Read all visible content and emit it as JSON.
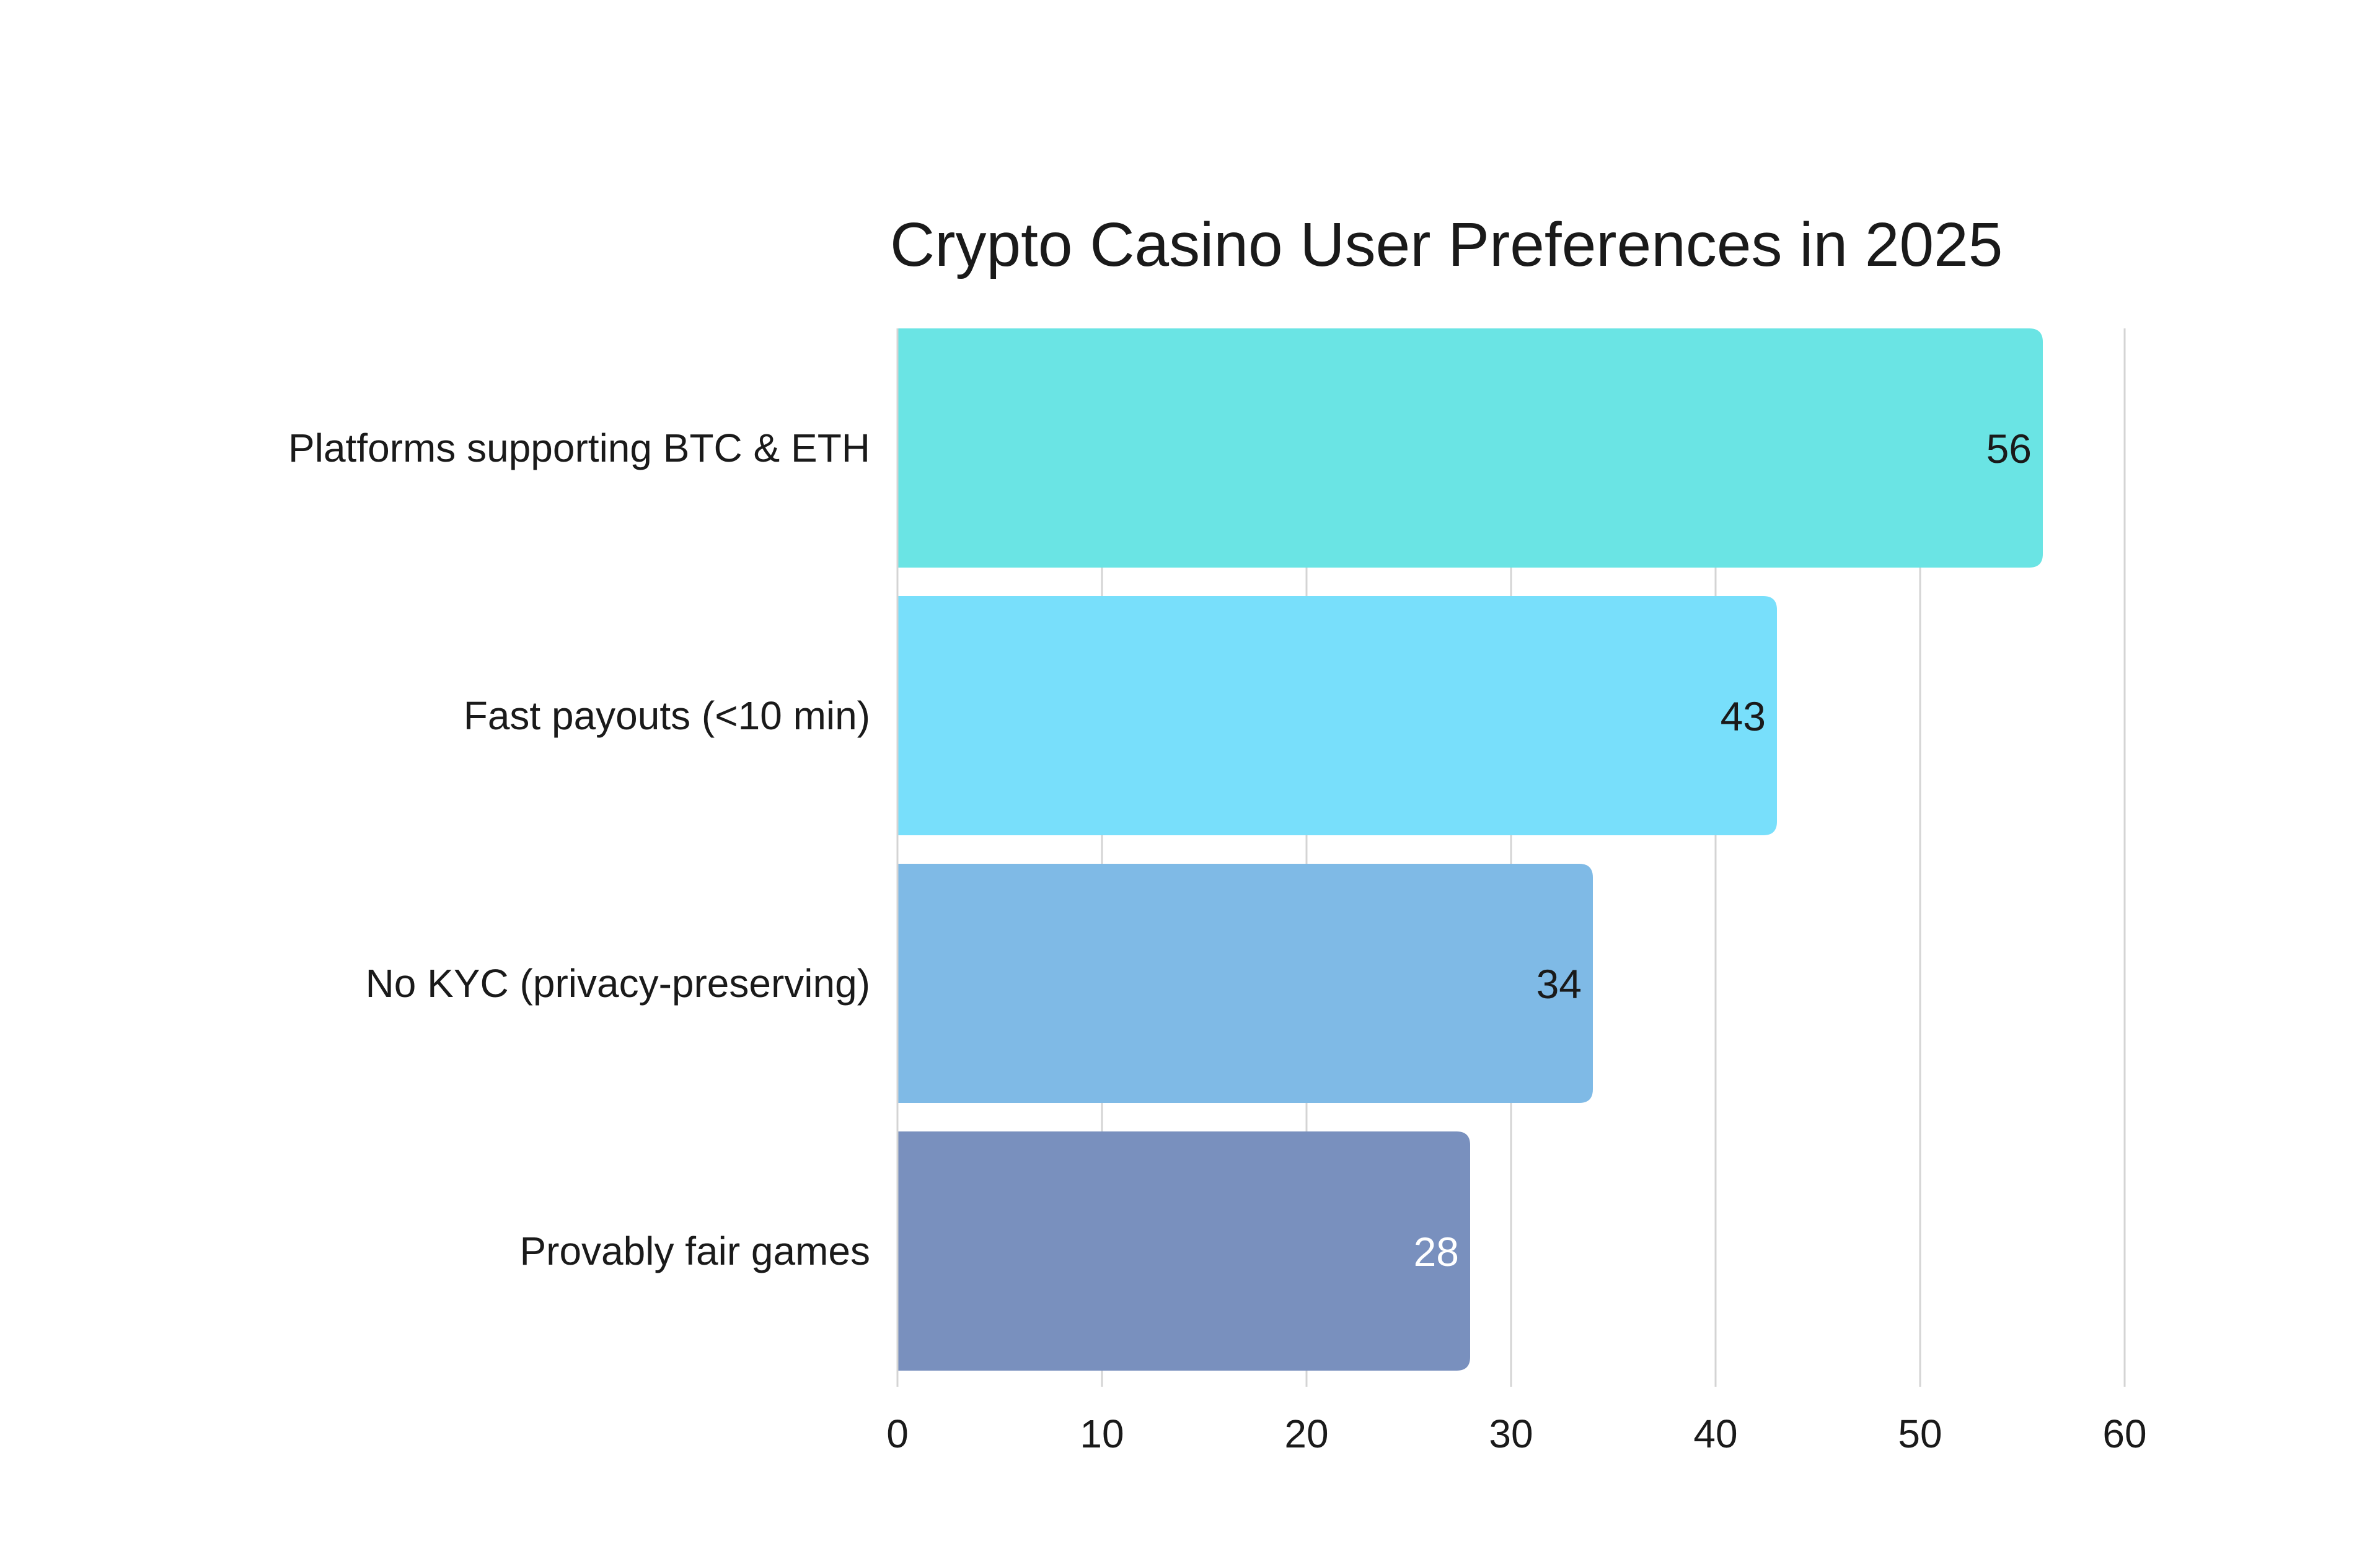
{
  "chart_data": {
    "type": "bar",
    "orientation": "horizontal",
    "title": "Crypto Casino User Preferences in 2025",
    "xlabel": "",
    "ylabel": "",
    "xlim": [
      0,
      60
    ],
    "x_ticks": [
      "0",
      "10",
      "20",
      "30",
      "40",
      "50",
      "60"
    ],
    "grid": "vertical",
    "categories": [
      "Platforms supporting BTC & ETH",
      "Fast payouts (<10 min)",
      "No KYC (privacy-preserving)",
      "Provably fair games"
    ],
    "values": [
      56,
      43,
      34,
      28
    ],
    "data_labels": [
      "56",
      "43",
      "34",
      "28"
    ],
    "colors": [
      "#6ae4e4",
      "#78dffb",
      "#7fbae6",
      "#7990be"
    ],
    "label_colors": [
      "#1a1a1a",
      "#1a1a1a",
      "#1a1a1a",
      "#ffffff"
    ]
  }
}
